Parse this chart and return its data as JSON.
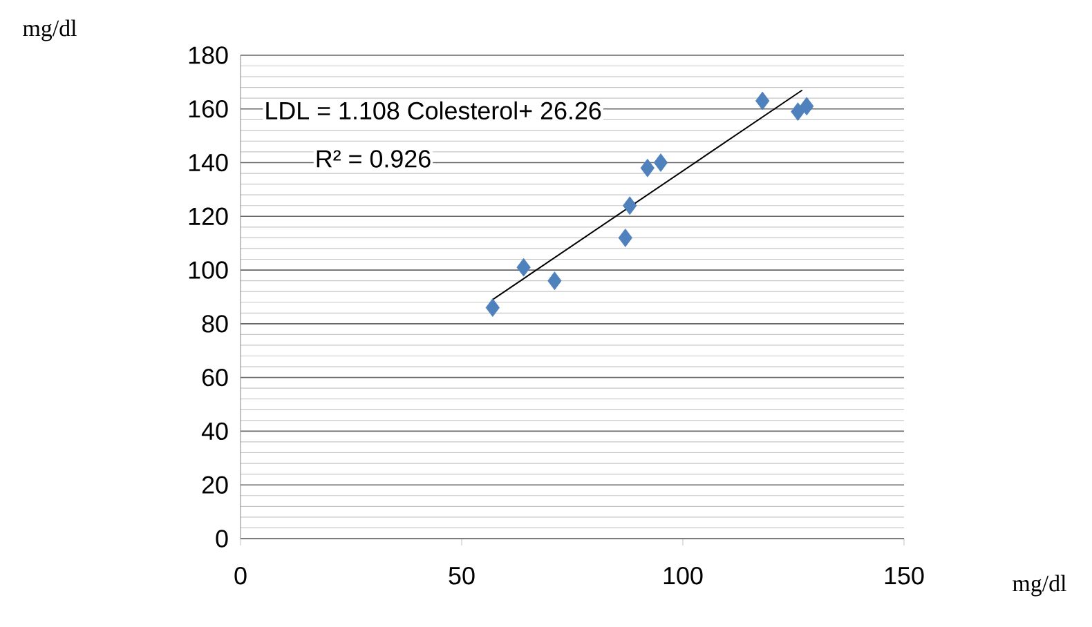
{
  "chart_data": {
    "type": "scatter",
    "ylabel": "mg/dl",
    "xlabel": "mg/dl",
    "annotations": [
      "LDL = 1.108  Colesterol+ 26.26",
      "R² = 0.926"
    ],
    "xlim": [
      0,
      150
    ],
    "xticks": [
      0,
      50,
      100,
      150
    ],
    "ylim": [
      0,
      180
    ],
    "yticks": [
      0,
      20,
      40,
      60,
      80,
      100,
      120,
      140,
      160,
      180
    ],
    "grid": "y",
    "series": [
      {
        "marker": "diamond",
        "color": "#4f81bd",
        "x": [
          57,
          64,
          71,
          87,
          88,
          92,
          95,
          118,
          126,
          128
        ],
        "values": [
          86,
          101,
          96,
          112,
          124,
          138,
          140,
          163,
          159,
          161
        ]
      },
      {
        "type": "line",
        "marker": "none",
        "line_style": "solid",
        "color": "#000000",
        "x": [
          57,
          127
        ],
        "values": [
          89,
          167
        ]
      }
    ]
  }
}
